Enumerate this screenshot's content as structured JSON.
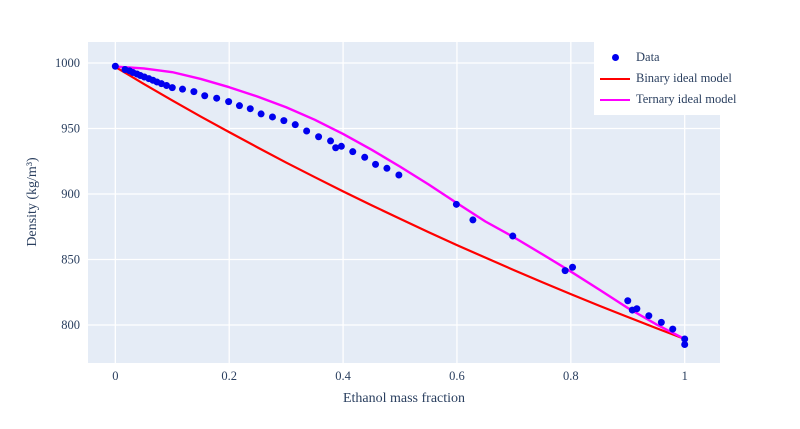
{
  "figure": {
    "plot_bgcolor": "#e5ecf6",
    "grid_color": "#ffffff",
    "text_color": "#2a3f5f",
    "paper_bgcolor": "#ffffff"
  },
  "chart_data": {
    "type": "scatter",
    "title": "",
    "xlabel": "Ethanol mass fraction",
    "ylabel": "Density (kg/m³)",
    "xlim": [
      -0.048,
      1.062
    ],
    "ylim": [
      771,
      1016
    ],
    "x_ticks": [
      0,
      0.2,
      0.4,
      0.6,
      0.8,
      1
    ],
    "x_tick_labels": [
      "0",
      "0.2",
      "0.4",
      "0.6",
      "0.8",
      "1"
    ],
    "y_ticks": [
      800,
      850,
      900,
      950,
      1000
    ],
    "y_tick_labels": [
      "800",
      "850",
      "900",
      "950",
      "1000"
    ],
    "grid": true,
    "legend_position": "top-right",
    "series": [
      {
        "name": "Data",
        "mode": "markers",
        "color": "#0000ee",
        "marker": "circle",
        "marker_size": 7,
        "x": [
          0,
          0.017,
          0.025,
          0.031,
          0.038,
          0.044,
          0.051,
          0.059,
          0.066,
          0.073,
          0.081,
          0.09,
          0.1,
          0.118,
          0.138,
          0.157,
          0.178,
          0.199,
          0.218,
          0.237,
          0.256,
          0.276,
          0.296,
          0.316,
          0.336,
          0.357,
          0.378,
          0.387,
          0.397,
          0.417,
          0.438,
          0.457,
          0.477,
          0.498,
          0.599,
          0.628,
          0.698,
          0.79,
          0.803,
          0.9,
          0.908,
          0.916,
          0.937,
          0.959,
          0.979,
          1.0,
          1.0
        ],
        "y": [
          997.5,
          995.0,
          994.0,
          992.7,
          991.6,
          990.4,
          989.3,
          988.0,
          986.8,
          985.5,
          984.2,
          982.8,
          981.2,
          980.0,
          978.1,
          975.0,
          973.1,
          970.5,
          967.4,
          965.1,
          961.1,
          958.8,
          956.0,
          952.9,
          948.1,
          943.7,
          940.5,
          935.3,
          936.4,
          932.3,
          928.0,
          922.6,
          919.6,
          914.5,
          892.1,
          880.2,
          867.9,
          841.5,
          844.1,
          818.5,
          811.4,
          812.4,
          807.1,
          802.0,
          796.9,
          789.3,
          785.1
        ]
      },
      {
        "name": "Binary ideal model",
        "mode": "line",
        "color": "#ff0000",
        "line_width": 2.2,
        "x": [
          0,
          0.05,
          0.1,
          0.15,
          0.2,
          0.25,
          0.3,
          0.35,
          0.4,
          0.45,
          0.5,
          0.55,
          0.6,
          0.65,
          0.7,
          0.75,
          0.8,
          0.85,
          0.9,
          0.95,
          1.0
        ],
        "y": [
          997.0,
          984.0,
          971.4,
          959.1,
          947.2,
          935.5,
          924.0,
          912.9,
          902.0,
          891.4,
          881.1,
          870.9,
          861.0,
          851.4,
          841.9,
          832.6,
          823.6,
          814.7,
          806.1,
          797.6,
          789.3
        ]
      },
      {
        "name": "Ternary ideal model",
        "mode": "line",
        "color": "#ff00ff",
        "line_width": 2.4,
        "x": [
          0,
          0.05,
          0.1,
          0.15,
          0.2,
          0.25,
          0.3,
          0.35,
          0.4,
          0.45,
          0.5,
          0.55,
          0.6,
          0.65,
          0.7,
          0.75,
          0.8,
          0.85,
          0.9,
          0.95,
          1.0
        ],
        "y": [
          997.2,
          995.8,
          993.0,
          987.8,
          981.5,
          974.3,
          966.2,
          956.7,
          945.8,
          933.8,
          920.9,
          907.3,
          893.0,
          879.0,
          867.0,
          854.0,
          840.8,
          827.0,
          813.0,
          800.5,
          789.3
        ]
      }
    ]
  }
}
